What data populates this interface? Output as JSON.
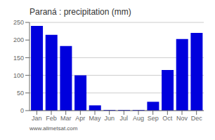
{
  "chart_data": {
    "type": "bar",
    "title": "Paraná : precipitation (mm)",
    "categories": [
      "Jan",
      "Feb",
      "Mar",
      "Apr",
      "May",
      "Jun",
      "Jul",
      "Aug",
      "Sep",
      "Oct",
      "Nov",
      "Dec"
    ],
    "values": [
      240,
      215,
      183,
      100,
      15,
      2,
      2,
      2,
      25,
      115,
      203,
      220
    ],
    "color": "#0000dd",
    "ylim": [
      0,
      250
    ],
    "yticks": [
      0,
      50,
      100,
      150,
      200,
      250
    ],
    "grid": true,
    "annotations": [
      "www.allmetsat.com"
    ]
  }
}
